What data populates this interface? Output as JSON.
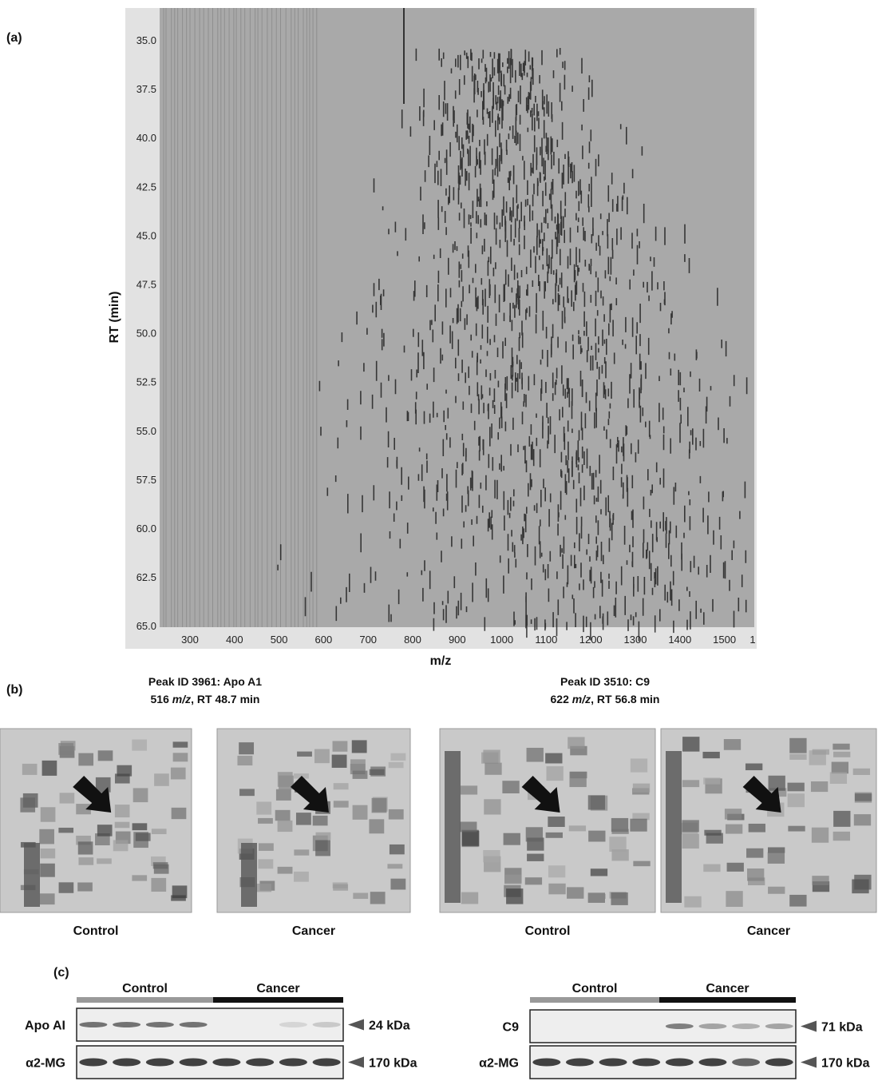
{
  "panel_a": {
    "label": "(a)",
    "y_label": "RT (min)",
    "x_label": "m/z",
    "y_ticks": [
      "35.0",
      "37.5",
      "40.0",
      "42.5",
      "45.0",
      "47.5",
      "50.0",
      "52.5",
      "55.0",
      "57.5",
      "60.0",
      "62.5",
      "65.0"
    ],
    "x_ticks": [
      "300",
      "400",
      "500",
      "600",
      "700",
      "800",
      "900",
      "1000",
      "1100",
      "1200",
      "1300",
      "1400",
      "1500",
      "1"
    ]
  },
  "panel_b": {
    "label": "(b)",
    "peaks": [
      {
        "title": "Peak ID 3961: Apo A1",
        "subtitle": [
          "516 ",
          "m/z",
          ", RT 48.7 min"
        ],
        "groups": [
          "Control",
          "Cancer"
        ]
      },
      {
        "title": "Peak ID 3510: C9",
        "subtitle": [
          "622 ",
          "m/z",
          ", RT 56.8 min"
        ],
        "groups": [
          "Control",
          "Cancer"
        ]
      }
    ]
  },
  "panel_c": {
    "label": "(c)",
    "blots": [
      {
        "groups": [
          "Control",
          "Cancer"
        ],
        "rows": [
          {
            "name": "Apo AI",
            "size": "24 kDa"
          },
          {
            "name": "α2-MG",
            "size": "170 kDa"
          }
        ]
      },
      {
        "groups": [
          "Control",
          "Cancer"
        ],
        "rows": [
          {
            "name": "C9",
            "size": "71 kDa"
          },
          {
            "name": "α2-MG",
            "size": "170 kDa"
          }
        ]
      }
    ]
  }
}
